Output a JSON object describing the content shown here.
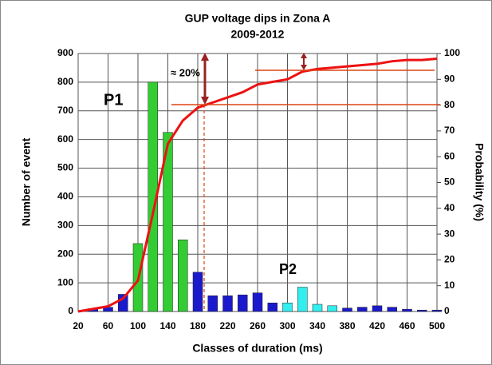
{
  "chart_data": {
    "type": "bar",
    "title": "GUP voltage dips in Zona A",
    "subtitle": "2009-2012",
    "x_label": "Classes of duration (ms)",
    "y_label": "Number of event",
    "y2_label": "Probability (%)",
    "annotations": [
      "P1",
      "P2",
      "≈ 20%"
    ],
    "x": [
      40,
      60,
      80,
      100,
      120,
      140,
      160,
      180,
      200,
      220,
      240,
      260,
      280,
      300,
      320,
      340,
      360,
      380,
      400,
      420,
      440,
      460,
      480,
      500
    ],
    "series": [
      {
        "name": "Number of event",
        "type": "bar",
        "values": [
          10,
          15,
          60,
          237,
          800,
          625,
          250,
          137,
          55,
          55,
          58,
          65,
          30,
          30,
          85,
          25,
          20,
          12,
          15,
          20,
          15,
          8,
          5,
          5
        ],
        "colors": [
          "#1a1acc",
          "#1a1acc",
          "#1a1acc",
          "#33cc33",
          "#33cc33",
          "#33cc33",
          "#33cc33",
          "#1a1acc",
          "#1a1acc",
          "#1a1acc",
          "#1a1acc",
          "#1a1acc",
          "#1a1acc",
          "#33eeee",
          "#33eeee",
          "#33eeee",
          "#33eeee",
          "#1a1acc",
          "#1a1acc",
          "#1a1acc",
          "#1a1acc",
          "#1a1acc",
          "#1a1acc",
          "#1a1acc"
        ]
      },
      {
        "name": "Probability (%)",
        "type": "line",
        "axis": "y2",
        "color": "#ee1111",
        "x": [
          20,
          40,
          60,
          80,
          100,
          120,
          140,
          160,
          180,
          200,
          220,
          240,
          260,
          280,
          300,
          320,
          340,
          360,
          380,
          400,
          420,
          440,
          460,
          480,
          500
        ],
        "values": [
          0,
          1,
          2,
          5,
          12,
          38,
          65,
          74,
          79,
          81,
          83,
          85,
          88,
          89,
          90,
          93,
          94,
          94.5,
          95,
          95.5,
          96,
          97,
          97.5,
          97.5,
          98
        ]
      }
    ],
    "xlim": [
      20,
      500
    ],
    "xticks": [
      20,
      60,
      100,
      140,
      180,
      220,
      260,
      300,
      340,
      380,
      420,
      460,
      500
    ],
    "ylim": [
      0,
      900
    ],
    "yticks": [
      0,
      100,
      200,
      300,
      400,
      500,
      600,
      700,
      800,
      900
    ],
    "y2lim": [
      0,
      100
    ],
    "y2ticks": [
      0,
      10,
      20,
      30,
      40,
      50,
      60,
      70,
      80,
      90,
      100
    ],
    "grid": true
  }
}
